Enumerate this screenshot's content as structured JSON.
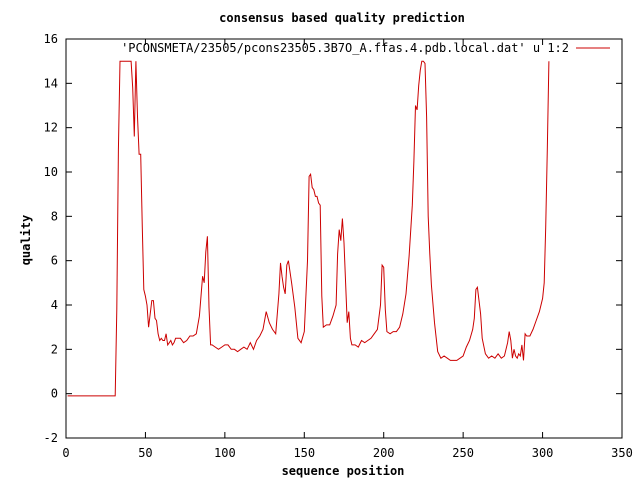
{
  "chart_data": {
    "type": "line",
    "title": "consensus based quality prediction",
    "xlabel": "sequence position",
    "ylabel": "quality",
    "xlim": [
      0,
      350
    ],
    "ylim": [
      -2,
      16
    ],
    "xticks": [
      0,
      50,
      100,
      150,
      200,
      250,
      300,
      350
    ],
    "yticks": [
      -2,
      0,
      2,
      4,
      6,
      8,
      10,
      12,
      14,
      16
    ],
    "grid": false,
    "legend_position": "top-right",
    "series": [
      {
        "name": "'PCONSMETA/23505/pcons23505.3B7O_A.ffas.4.pdb.local.dat' u 1:2",
        "color": "#cc0000",
        "x": [
          1,
          31,
          32,
          33,
          34,
          35,
          36,
          40,
          41,
          42,
          43,
          44,
          45,
          46,
          47,
          48,
          49,
          50,
          51,
          52,
          53,
          54,
          55,
          56,
          57,
          58,
          59,
          60,
          61,
          62,
          63,
          64,
          65,
          66,
          67,
          68,
          69,
          70,
          72,
          74,
          76,
          78,
          80,
          82,
          84,
          86,
          87,
          88,
          89,
          90,
          91,
          92,
          94,
          96,
          98,
          100,
          102,
          104,
          106,
          108,
          110,
          112,
          114,
          116,
          118,
          120,
          122,
          124,
          126,
          128,
          130,
          132,
          134,
          135,
          136,
          137,
          138,
          139,
          140,
          142,
          144,
          146,
          148,
          150,
          152,
          153,
          154,
          155,
          156,
          157,
          158,
          159,
          160,
          161,
          162,
          164,
          166,
          168,
          170,
          171,
          172,
          173,
          174,
          175,
          176,
          177,
          178,
          179,
          180,
          182,
          184,
          186,
          188,
          190,
          192,
          194,
          196,
          198,
          199,
          200,
          201,
          202,
          204,
          206,
          208,
          210,
          212,
          214,
          216,
          218,
          219,
          220,
          221,
          222,
          223,
          224,
          225,
          226,
          227,
          228,
          229,
          230,
          232,
          234,
          236,
          238,
          240,
          242,
          244,
          246,
          248,
          250,
          252,
          254,
          256,
          257,
          258,
          259,
          260,
          261,
          262,
          264,
          266,
          268,
          270,
          272,
          274,
          276,
          278,
          279,
          280,
          281,
          282,
          283,
          284,
          285,
          286,
          287,
          288,
          289,
          290,
          292,
          294,
          296,
          298,
          300,
          301,
          302,
          303,
          304
        ],
        "y": [
          -0.1,
          -0.1,
          3.8,
          11,
          15,
          15,
          15,
          15,
          15,
          13.8,
          11.6,
          15,
          12.5,
          10.8,
          10.8,
          7.5,
          4.7,
          4.4,
          4,
          3,
          3.6,
          4.2,
          4.2,
          3.4,
          3.3,
          2.7,
          2.4,
          2.5,
          2.4,
          2.4,
          2.7,
          2.2,
          2.3,
          2.4,
          2.2,
          2.3,
          2.5,
          2.5,
          2.5,
          2.3,
          2.4,
          2.6,
          2.6,
          2.7,
          3.5,
          5.3,
          5,
          6.4,
          7.1,
          3.9,
          2.2,
          2.2,
          2.1,
          2,
          2.1,
          2.2,
          2.2,
          2,
          2,
          1.9,
          2,
          2.1,
          2,
          2.3,
          2,
          2.4,
          2.6,
          2.9,
          3.7,
          3.2,
          2.9,
          2.7,
          4.5,
          5.9,
          5.3,
          4.8,
          4.5,
          5.8,
          6,
          5,
          3.9,
          2.5,
          2.3,
          2.8,
          6,
          9.8,
          9.9,
          9.3,
          9.2,
          8.9,
          8.9,
          8.6,
          8.5,
          4.4,
          3,
          3.1,
          3.1,
          3.5,
          4,
          6.3,
          7.4,
          6.9,
          7.9,
          6.8,
          5,
          3.2,
          3.7,
          2.5,
          2.2,
          2.2,
          2.1,
          2.4,
          2.3,
          2.4,
          2.5,
          2.7,
          2.9,
          4,
          5.8,
          5.7,
          3.8,
          2.8,
          2.7,
          2.8,
          2.8,
          3,
          3.6,
          4.5,
          6.2,
          8.5,
          10.5,
          13,
          12.8,
          13.9,
          14.6,
          15,
          15,
          14.9,
          12.5,
          8,
          6.3,
          4.9,
          3.2,
          1.9,
          1.6,
          1.7,
          1.6,
          1.5,
          1.5,
          1.5,
          1.6,
          1.7,
          2.1,
          2.4,
          2.9,
          3.4,
          4.7,
          4.8,
          4.2,
          3.6,
          2.5,
          1.8,
          1.6,
          1.7,
          1.6,
          1.8,
          1.6,
          1.7,
          2.3,
          2.8,
          2.4,
          1.6,
          2,
          1.7,
          1.6,
          1.8,
          1.7,
          2.2,
          1.5,
          2.7,
          2.6,
          2.6,
          2.9,
          3.3,
          3.7,
          4.3,
          5,
          7.5,
          11,
          15
        ]
      }
    ]
  }
}
